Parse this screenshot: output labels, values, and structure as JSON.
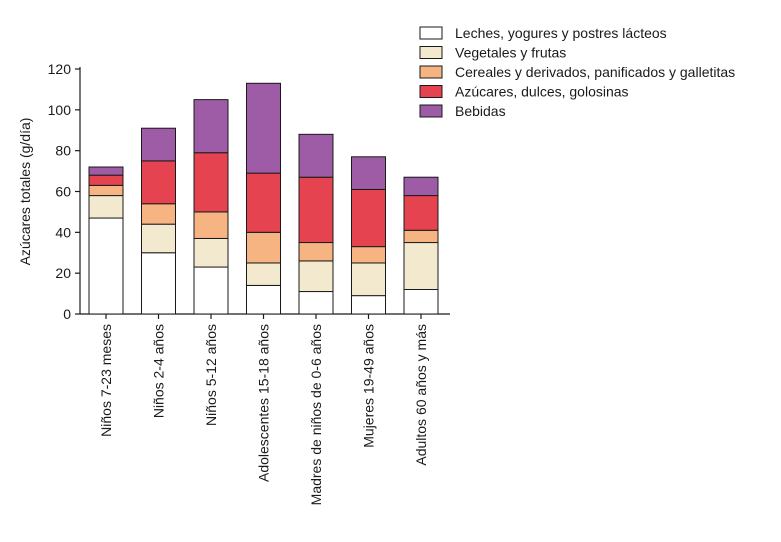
{
  "chart_data": {
    "type": "bar",
    "stacked": true,
    "title": "",
    "xlabel": "",
    "ylabel": "Azúcares totales (g/día)",
    "ylim": [
      0,
      120
    ],
    "yticks": [
      0,
      20,
      40,
      60,
      80,
      100,
      120
    ],
    "grid": false,
    "legend_position": "top-right",
    "categories": [
      "Niños 7-23 meses",
      "Niños 2-4 años",
      "Niños 5-12 años",
      "Adolescentes 15-18 años",
      "Madres de niños de 0-6 años",
      "Mujeres 19-49 años",
      "Adultos 60 años y más"
    ],
    "series": [
      {
        "name": "Leches, yogures y postres lácteos",
        "color": "#ffffff",
        "values": [
          47,
          30,
          23,
          14,
          11,
          9,
          12
        ]
      },
      {
        "name": "Vegetales y frutas",
        "color": "#f3e9cf",
        "values": [
          11,
          14,
          14,
          11,
          15,
          16,
          23
        ]
      },
      {
        "name": "Cereales y derivados, panificados y galletitas",
        "color": "#f6b482",
        "values": [
          5,
          10,
          13,
          15,
          9,
          8,
          6
        ]
      },
      {
        "name": "Azúcares, dulces, golosinas",
        "color": "#e5434f",
        "values": [
          5,
          21,
          29,
          29,
          32,
          28,
          17
        ]
      },
      {
        "name": "Bebidas",
        "color": "#9e5ba6",
        "values": [
          4,
          16,
          26,
          44,
          21,
          16,
          9
        ]
      }
    ]
  }
}
